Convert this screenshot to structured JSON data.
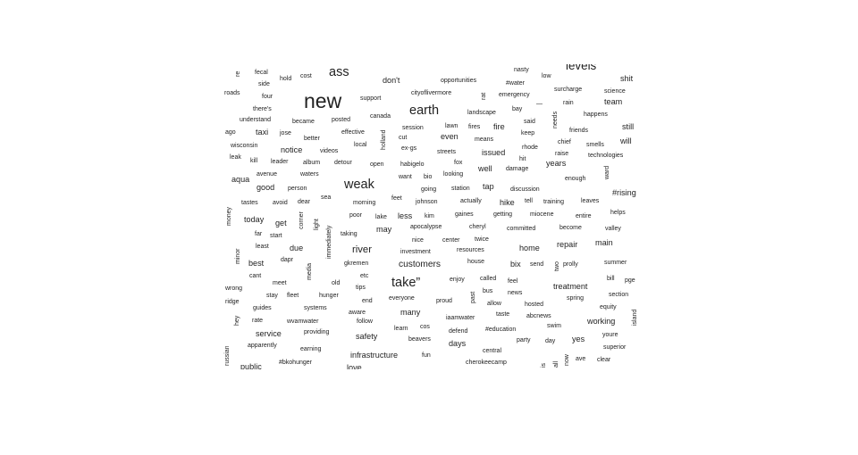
{
  "chart_data": {
    "type": "wordcloud",
    "title": "",
    "text_color": "#222222",
    "words": [
      {
        "text": "new",
        "weight": 22
      },
      {
        "text": "ass",
        "weight": 14
      },
      {
        "text": "levels",
        "weight": 13
      },
      {
        "text": "earth",
        "weight": 14
      },
      {
        "text": "weak",
        "weight": 14
      },
      {
        "text": "take”",
        "weight": 14
      },
      {
        "text": "river",
        "weight": 11
      },
      {
        "text": "customers",
        "weight": 10
      },
      {
        "text": "don't",
        "weight": 9
      },
      {
        "text": "taxi",
        "weight": 9
      },
      {
        "text": "notice",
        "weight": 9
      },
      {
        "text": "good",
        "weight": 9
      },
      {
        "text": "issued",
        "weight": 9
      },
      {
        "text": "years",
        "weight": 9
      },
      {
        "text": "well",
        "weight": 9
      },
      {
        "text": "hike",
        "weight": 9
      },
      {
        "text": "tap",
        "weight": 9
      },
      {
        "text": "will",
        "weight": 9
      },
      {
        "text": "still",
        "weight": 9
      },
      {
        "text": "shit",
        "weight": 9
      },
      {
        "text": "team",
        "weight": 9
      },
      {
        "text": "fire",
        "weight": 9
      },
      {
        "text": "even",
        "weight": 9
      },
      {
        "text": "today",
        "weight": 9
      },
      {
        "text": "get",
        "weight": 9
      },
      {
        "text": "due",
        "weight": 9
      },
      {
        "text": "less",
        "weight": 9
      },
      {
        "text": "may",
        "weight": 9
      },
      {
        "text": "home",
        "weight": 9
      },
      {
        "text": "repair",
        "weight": 9
      },
      {
        "text": "main",
        "weight": 9
      },
      {
        "text": "best",
        "weight": 9
      },
      {
        "text": "bix",
        "weight": 9
      },
      {
        "text": "treatment",
        "weight": 9
      },
      {
        "text": "service",
        "weight": 9
      },
      {
        "text": "safety",
        "weight": 9
      },
      {
        "text": "many",
        "weight": 9
      },
      {
        "text": "working",
        "weight": 9
      },
      {
        "text": "yes",
        "weight": 9
      },
      {
        "text": "days",
        "weight": 9
      },
      {
        "text": "infrastructure",
        "weight": 9
      },
      {
        "text": "public",
        "weight": 9
      },
      {
        "text": "love",
        "weight": 9
      },
      {
        "text": "aqua",
        "weight": 9
      },
      {
        "text": "#rising",
        "weight": 9
      },
      {
        "text": "fecal",
        "weight": 7
      },
      {
        "text": "hold",
        "weight": 7
      },
      {
        "text": "cost",
        "weight": 7
      },
      {
        "text": "side",
        "weight": 7
      },
      {
        "text": "roads",
        "weight": 7
      },
      {
        "text": "four",
        "weight": 7
      },
      {
        "text": "there's",
        "weight": 7
      },
      {
        "text": "understand",
        "weight": 7
      },
      {
        "text": "became",
        "weight": 7
      },
      {
        "text": "posted",
        "weight": 7
      },
      {
        "text": "canada",
        "weight": 7
      },
      {
        "text": "support",
        "weight": 7
      },
      {
        "text": "cityoflivermore",
        "weight": 7
      },
      {
        "text": "opportunities",
        "weight": 7
      },
      {
        "text": "#water",
        "weight": 7
      },
      {
        "text": "low",
        "weight": 7
      },
      {
        "text": "nasty",
        "weight": 7
      },
      {
        "text": "emergency",
        "weight": 7
      },
      {
        "text": "surcharge",
        "weight": 7
      },
      {
        "text": "science",
        "weight": 7
      },
      {
        "text": "rain",
        "weight": 7
      },
      {
        "text": "bay",
        "weight": 7
      },
      {
        "text": "—",
        "weight": 7
      },
      {
        "text": "landscape",
        "weight": 7
      },
      {
        "text": "said",
        "weight": 7
      },
      {
        "text": "happens",
        "weight": 7
      },
      {
        "text": "friends",
        "weight": 7
      },
      {
        "text": "keep",
        "weight": 7
      },
      {
        "text": "ago",
        "weight": 7
      },
      {
        "text": "jose",
        "weight": 7
      },
      {
        "text": "better",
        "weight": 7
      },
      {
        "text": "effective",
        "weight": 7
      },
      {
        "text": "session",
        "weight": 7
      },
      {
        "text": "lawn",
        "weight": 7
      },
      {
        "text": "fires",
        "weight": 7
      },
      {
        "text": "cut",
        "weight": 7
      },
      {
        "text": "means",
        "weight": 7
      },
      {
        "text": "chief",
        "weight": 7
      },
      {
        "text": "smells",
        "weight": 7
      },
      {
        "text": "wisconsin",
        "weight": 7
      },
      {
        "text": "local",
        "weight": 7
      },
      {
        "text": "videos",
        "weight": 7
      },
      {
        "text": "ex-gs",
        "weight": 7
      },
      {
        "text": "streets",
        "weight": 7
      },
      {
        "text": "rhode",
        "weight": 7
      },
      {
        "text": "raise",
        "weight": 7
      },
      {
        "text": "technologies",
        "weight": 7
      },
      {
        "text": "leak",
        "weight": 7
      },
      {
        "text": "kill",
        "weight": 7
      },
      {
        "text": "leader",
        "weight": 7
      },
      {
        "text": "album",
        "weight": 7
      },
      {
        "text": "detour",
        "weight": 7
      },
      {
        "text": "open",
        "weight": 7
      },
      {
        "text": "habigelo",
        "weight": 7
      },
      {
        "text": "fox",
        "weight": 7
      },
      {
        "text": "hit",
        "weight": 7
      },
      {
        "text": "damage",
        "weight": 7
      },
      {
        "text": "avenue",
        "weight": 7
      },
      {
        "text": "waters",
        "weight": 7
      },
      {
        "text": "want",
        "weight": 7
      },
      {
        "text": "bio",
        "weight": 7
      },
      {
        "text": "looking",
        "weight": 7
      },
      {
        "text": "enough",
        "weight": 7
      },
      {
        "text": "person",
        "weight": 7
      },
      {
        "text": "going",
        "weight": 7
      },
      {
        "text": "station",
        "weight": 7
      },
      {
        "text": "discussion",
        "weight": 7
      },
      {
        "text": "sea",
        "weight": 7
      },
      {
        "text": "feet",
        "weight": 7
      },
      {
        "text": "tastes",
        "weight": 7
      },
      {
        "text": "avoid",
        "weight": 7
      },
      {
        "text": "dear",
        "weight": 7
      },
      {
        "text": "morning",
        "weight": 7
      },
      {
        "text": "johnson",
        "weight": 7
      },
      {
        "text": "actually",
        "weight": 7
      },
      {
        "text": "tell",
        "weight": 7
      },
      {
        "text": "training",
        "weight": 7
      },
      {
        "text": "leaves",
        "weight": 7
      },
      {
        "text": "helps",
        "weight": 7
      },
      {
        "text": "poor",
        "weight": 7
      },
      {
        "text": "lake",
        "weight": 7
      },
      {
        "text": "kim",
        "weight": 7
      },
      {
        "text": "gaines",
        "weight": 7
      },
      {
        "text": "getting",
        "weight": 7
      },
      {
        "text": "miocene",
        "weight": 7
      },
      {
        "text": "entire",
        "weight": 7
      },
      {
        "text": "apocalypse",
        "weight": 7
      },
      {
        "text": "cheryl",
        "weight": 7
      },
      {
        "text": "committed",
        "weight": 7
      },
      {
        "text": "become",
        "weight": 7
      },
      {
        "text": "valley",
        "weight": 7
      },
      {
        "text": "far",
        "weight": 7
      },
      {
        "text": "start",
        "weight": 7
      },
      {
        "text": "taking",
        "weight": 7
      },
      {
        "text": "nice",
        "weight": 7
      },
      {
        "text": "center",
        "weight": 7
      },
      {
        "text": "twice",
        "weight": 7
      },
      {
        "text": "least",
        "weight": 7
      },
      {
        "text": "investment",
        "weight": 7
      },
      {
        "text": "resources",
        "weight": 7
      },
      {
        "text": "dapr",
        "weight": 7
      },
      {
        "text": "gkremen",
        "weight": 7
      },
      {
        "text": "house",
        "weight": 7
      },
      {
        "text": "send",
        "weight": 7
      },
      {
        "text": "prolly",
        "weight": 7
      },
      {
        "text": "summer",
        "weight": 7
      },
      {
        "text": "cant",
        "weight": 7
      },
      {
        "text": "etc",
        "weight": 7
      },
      {
        "text": "enjoy",
        "weight": 7
      },
      {
        "text": "called",
        "weight": 7
      },
      {
        "text": "feel",
        "weight": 7
      },
      {
        "text": "bill",
        "weight": 7
      },
      {
        "text": "pge",
        "weight": 7
      },
      {
        "text": "meet",
        "weight": 7
      },
      {
        "text": "old",
        "weight": 7
      },
      {
        "text": "tips",
        "weight": 7
      },
      {
        "text": "wrong",
        "weight": 7
      },
      {
        "text": "stay",
        "weight": 7
      },
      {
        "text": "fleet",
        "weight": 7
      },
      {
        "text": "hunger",
        "weight": 7
      },
      {
        "text": "bus",
        "weight": 7
      },
      {
        "text": "news",
        "weight": 7
      },
      {
        "text": "spring",
        "weight": 7
      },
      {
        "text": "section",
        "weight": 7
      },
      {
        "text": "ridge",
        "weight": 7
      },
      {
        "text": "end",
        "weight": 7
      },
      {
        "text": "everyone",
        "weight": 7
      },
      {
        "text": "proud",
        "weight": 7
      },
      {
        "text": "allow",
        "weight": 7
      },
      {
        "text": "hosted",
        "weight": 7
      },
      {
        "text": "equity",
        "weight": 7
      },
      {
        "text": "guides",
        "weight": 7
      },
      {
        "text": "systems",
        "weight": 7
      },
      {
        "text": "aware",
        "weight": 7
      },
      {
        "text": "taste",
        "weight": 7
      },
      {
        "text": "abcnews",
        "weight": 7
      },
      {
        "text": "rate",
        "weight": 7
      },
      {
        "text": "wvamwater",
        "weight": 7
      },
      {
        "text": "follow",
        "weight": 7
      },
      {
        "text": "iaamwater",
        "weight": 7
      },
      {
        "text": "learn",
        "weight": 7
      },
      {
        "text": "cos",
        "weight": 7
      },
      {
        "text": "#education",
        "weight": 7
      },
      {
        "text": "swim",
        "weight": 7
      },
      {
        "text": "providing",
        "weight": 7
      },
      {
        "text": "defend",
        "weight": 7
      },
      {
        "text": "youre",
        "weight": 7
      },
      {
        "text": "beavers",
        "weight": 7
      },
      {
        "text": "party",
        "weight": 7
      },
      {
        "text": "day",
        "weight": 7
      },
      {
        "text": "apparently",
        "weight": 7
      },
      {
        "text": "earning",
        "weight": 7
      },
      {
        "text": "central",
        "weight": 7
      },
      {
        "text": "superior",
        "weight": 7
      },
      {
        "text": "fun",
        "weight": 7
      },
      {
        "text": "ave",
        "weight": 7
      },
      {
        "text": "clear",
        "weight": 7
      },
      {
        "text": "#bkohunger",
        "weight": 7
      },
      {
        "text": "cherokeecamp",
        "weight": 7
      },
      {
        "text": "holland",
        "weight": 7
      },
      {
        "text": "needs",
        "weight": 7
      },
      {
        "text": "ward",
        "weight": 7
      },
      {
        "text": "money",
        "weight": 7
      },
      {
        "text": "corner",
        "weight": 7
      },
      {
        "text": "light",
        "weight": 7
      },
      {
        "text": "immediately",
        "weight": 7
      },
      {
        "text": "minor",
        "weight": 7
      },
      {
        "text": "media",
        "weight": 7
      },
      {
        "text": "two",
        "weight": 7
      },
      {
        "text": "past",
        "weight": 7
      },
      {
        "text": "hey",
        "weight": 7
      },
      {
        "text": "island",
        "weight": 7
      },
      {
        "text": "russian",
        "weight": 7
      },
      {
        "text": "rat",
        "weight": 7
      },
      {
        "text": "re",
        "weight": 7
      },
      {
        "text": "all",
        "weight": 7
      },
      {
        "text": "now",
        "weight": 7
      },
      {
        "text": "is",
        "weight": 7
      }
    ]
  }
}
